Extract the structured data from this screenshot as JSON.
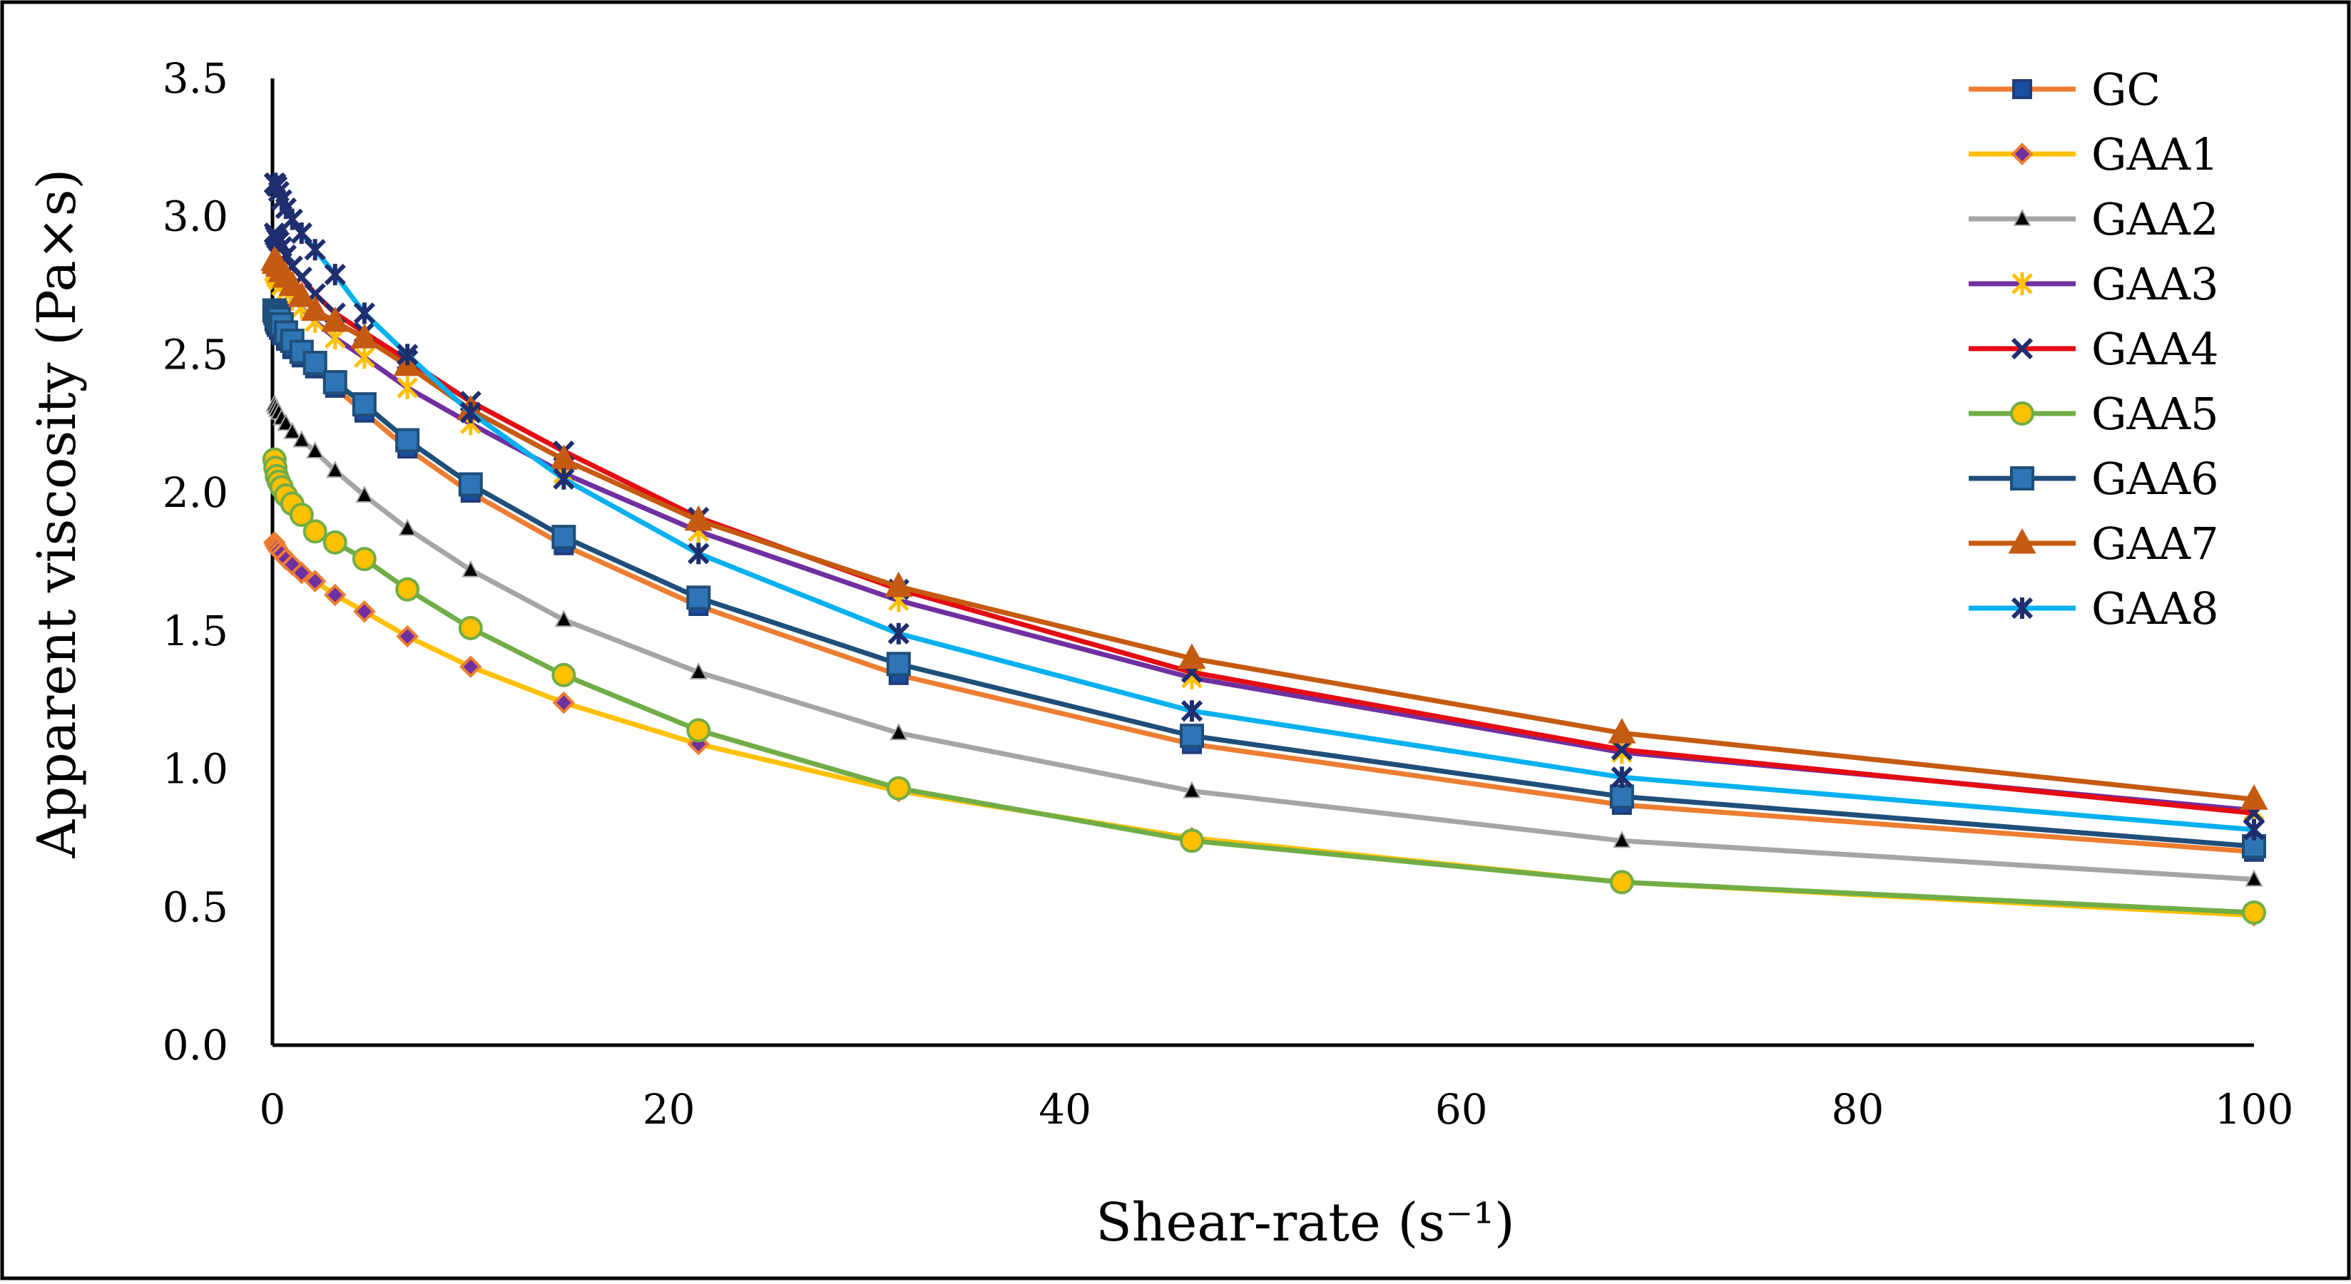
{
  "chart_data": {
    "type": "line",
    "title": "",
    "xlabel": "Shear-rate (s⁻¹)",
    "ylabel": "Apparent viscosity (Pa×s)",
    "xlim": [
      0,
      100
    ],
    "ylim": [
      0,
      3.5
    ],
    "xticks": [
      0,
      20,
      40,
      60,
      80,
      100
    ],
    "xtick_labels": [
      "0",
      "20",
      "40",
      "60",
      "80",
      "100"
    ],
    "yticks": [
      0,
      0.5,
      1.0,
      1.5,
      2.0,
      2.5,
      3.0,
      3.5
    ],
    "ytick_labels": [
      "0.0",
      "0.5",
      "1.0",
      "1.5",
      "2.0",
      "2.5",
      "3.0",
      "3.5"
    ],
    "grid": false,
    "legend_position": "top-right",
    "x": [
      0.1,
      0.15,
      0.22,
      0.32,
      0.46,
      0.68,
      1.0,
      1.47,
      2.15,
      3.16,
      4.64,
      6.81,
      10.0,
      14.7,
      21.5,
      31.6,
      46.4,
      68.1,
      100
    ],
    "series": [
      {
        "name": "GC",
        "color": "#ED7D31",
        "marker": "square-small",
        "marker_fill": "#1A4EA0",
        "marker_stroke": "#1F3D7A",
        "values": [
          2.62,
          2.61,
          2.6,
          2.59,
          2.57,
          2.55,
          2.52,
          2.49,
          2.45,
          2.38,
          2.29,
          2.16,
          2.0,
          1.81,
          1.59,
          1.34,
          1.09,
          0.87,
          0.7
        ]
      },
      {
        "name": "GAA1",
        "color": "#FFC000",
        "marker": "diamond",
        "marker_fill": "#7030A0",
        "marker_stroke": "#ED7D31",
        "values": [
          1.82,
          1.81,
          1.8,
          1.79,
          1.78,
          1.76,
          1.74,
          1.71,
          1.68,
          1.63,
          1.57,
          1.48,
          1.37,
          1.24,
          1.09,
          0.92,
          0.75,
          0.59,
          0.47
        ]
      },
      {
        "name": "GAA2",
        "color": "#A5A5A5",
        "marker": "triangle-small",
        "marker_fill": "#000000",
        "marker_stroke": "#A5A5A5",
        "values": [
          2.32,
          2.31,
          2.3,
          2.29,
          2.27,
          2.25,
          2.22,
          2.19,
          2.15,
          2.08,
          1.99,
          1.87,
          1.72,
          1.54,
          1.35,
          1.13,
          0.92,
          0.74,
          0.6
        ]
      },
      {
        "name": "GAA3",
        "color": "#7030A0",
        "marker": "star",
        "marker_fill": "#FFC000",
        "marker_stroke": "#FFC000",
        "values": [
          2.8,
          2.79,
          2.78,
          2.77,
          2.75,
          2.73,
          2.7,
          2.67,
          2.62,
          2.56,
          2.49,
          2.38,
          2.25,
          2.07,
          1.86,
          1.61,
          1.33,
          1.06,
          0.85
        ]
      },
      {
        "name": "GAA4",
        "color": "#E40B13",
        "marker": "x",
        "marker_fill": "#1F2E6E",
        "marker_stroke": "#1F2E6E",
        "values": [
          2.94,
          2.93,
          2.92,
          2.91,
          2.89,
          2.86,
          2.82,
          2.78,
          2.72,
          2.65,
          2.58,
          2.48,
          2.33,
          2.15,
          1.91,
          1.65,
          1.35,
          1.07,
          0.84
        ]
      },
      {
        "name": "GAA5",
        "color": "#70AD47",
        "marker": "circle",
        "marker_fill": "#FFC000",
        "marker_stroke": "#70AD47",
        "values": [
          2.12,
          2.09,
          2.06,
          2.04,
          2.02,
          1.99,
          1.96,
          1.92,
          1.86,
          1.82,
          1.76,
          1.65,
          1.51,
          1.34,
          1.14,
          0.93,
          0.74,
          0.59,
          0.48
        ]
      },
      {
        "name": "GAA6",
        "color": "#1F4E79",
        "marker": "square",
        "marker_fill": "#2E75B6",
        "marker_stroke": "#1F4E79",
        "values": [
          2.66,
          2.65,
          2.64,
          2.63,
          2.61,
          2.58,
          2.55,
          2.51,
          2.47,
          2.4,
          2.32,
          2.19,
          2.03,
          1.84,
          1.62,
          1.38,
          1.12,
          0.9,
          0.72
        ]
      },
      {
        "name": "GAA7",
        "color": "#C55A11",
        "marker": "triangle",
        "marker_fill": "#C55A11",
        "marker_stroke": "#C55A11",
        "values": [
          2.84,
          2.83,
          2.83,
          2.82,
          2.8,
          2.78,
          2.75,
          2.71,
          2.66,
          2.62,
          2.56,
          2.46,
          2.3,
          2.12,
          1.9,
          1.66,
          1.4,
          1.13,
          0.89
        ]
      },
      {
        "name": "GAA8",
        "color": "#00B0F0",
        "marker": "asterisk",
        "marker_fill": "#1F2E6E",
        "marker_stroke": "#1F2E6E",
        "values": [
          3.12,
          3.12,
          3.11,
          3.09,
          3.06,
          3.03,
          2.99,
          2.94,
          2.88,
          2.79,
          2.65,
          2.5,
          2.29,
          2.05,
          1.78,
          1.49,
          1.21,
          0.97,
          0.78
        ]
      }
    ]
  }
}
